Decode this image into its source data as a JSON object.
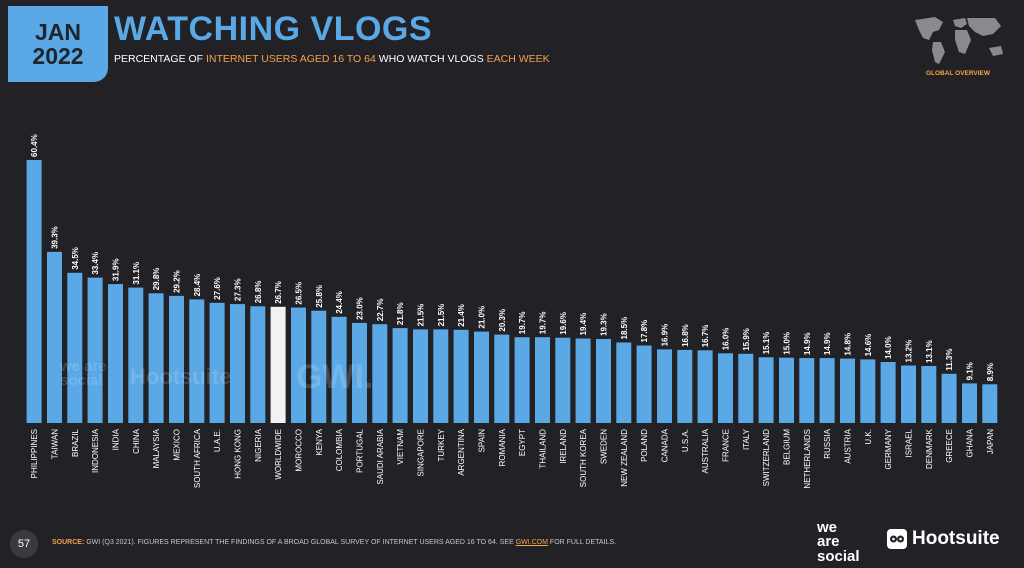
{
  "header": {
    "month": "JAN",
    "year": "2022",
    "title": "WATCHING VLOGS",
    "subtitle_parts": [
      {
        "text": "PERCENTAGE OF ",
        "hl": false
      },
      {
        "text": "INTERNET USERS AGED 16 TO 64",
        "hl": true
      },
      {
        "text": " WHO WATCH VLOGS ",
        "hl": false
      },
      {
        "text": "EACH WEEK",
        "hl": true
      }
    ],
    "region_label": "GLOBAL OVERVIEW"
  },
  "colors": {
    "bar": "#5aa8e6",
    "highlight_bar": "#f2f2f2",
    "accent": "#f7a24a",
    "background": "#222226"
  },
  "watermarks": {
    "we_are_social": "we are social",
    "hootsuite": "Hootsuite",
    "gwi": "GWI."
  },
  "footer": {
    "page_number": "57",
    "source_label": "SOURCE:",
    "source_text": " GWI (Q3 2021). FIGURES REPRESENT THE FINDINGS OF A BROAD GLOBAL SURVEY OF INTERNET USERS AGED 16 TO 64. SEE ",
    "source_link": "GWI.COM",
    "source_tail": " FOR FULL DETAILS.",
    "logo_we_are_social": [
      "we",
      "are",
      "social"
    ],
    "logo_hootsuite": "Hootsuite"
  },
  "chart_data": {
    "type": "bar",
    "highlight": "WORLDWIDE",
    "value_suffix": "%",
    "ylim": [
      0,
      65
    ],
    "grid": false,
    "categories": [
      "PHILIPPINES",
      "TAIWAN",
      "BRAZIL",
      "INDONESIA",
      "INDIA",
      "CHINA",
      "MALAYSIA",
      "MEXICO",
      "SOUTH AFRICA",
      "U.A.E.",
      "HONG KONG",
      "NIGERIA",
      "WORLDWIDE",
      "MOROCCO",
      "KENYA",
      "COLOMBIA",
      "PORTUGAL",
      "SAUDI ARABIA",
      "VIETNAM",
      "SINGAPORE",
      "TURKEY",
      "ARGENTINA",
      "SPAIN",
      "ROMANIA",
      "EGYPT",
      "THAILAND",
      "IRELAND",
      "SOUTH KOREA",
      "SWEDEN",
      "NEW ZEALAND",
      "POLAND",
      "CANADA",
      "U.S.A.",
      "AUSTRALIA",
      "FRANCE",
      "ITALY",
      "SWITZERLAND",
      "BELGIUM",
      "NETHERLANDS",
      "RUSSIA",
      "AUSTRIA",
      "U.K.",
      "GERMANY",
      "ISRAEL",
      "DENMARK",
      "GREECE",
      "GHANA",
      "JAPAN"
    ],
    "values": [
      60.4,
      39.3,
      34.5,
      33.4,
      31.9,
      31.1,
      29.8,
      29.2,
      28.4,
      27.6,
      27.3,
      26.8,
      26.7,
      26.5,
      25.8,
      24.4,
      23.0,
      22.7,
      21.8,
      21.5,
      21.5,
      21.4,
      21.0,
      20.3,
      19.7,
      19.7,
      19.6,
      19.4,
      19.3,
      18.5,
      17.8,
      16.9,
      16.8,
      16.7,
      16.0,
      15.9,
      15.1,
      15.0,
      14.9,
      14.9,
      14.8,
      14.6,
      14.0,
      13.2,
      13.1,
      11.3,
      9.1,
      8.9
    ]
  }
}
